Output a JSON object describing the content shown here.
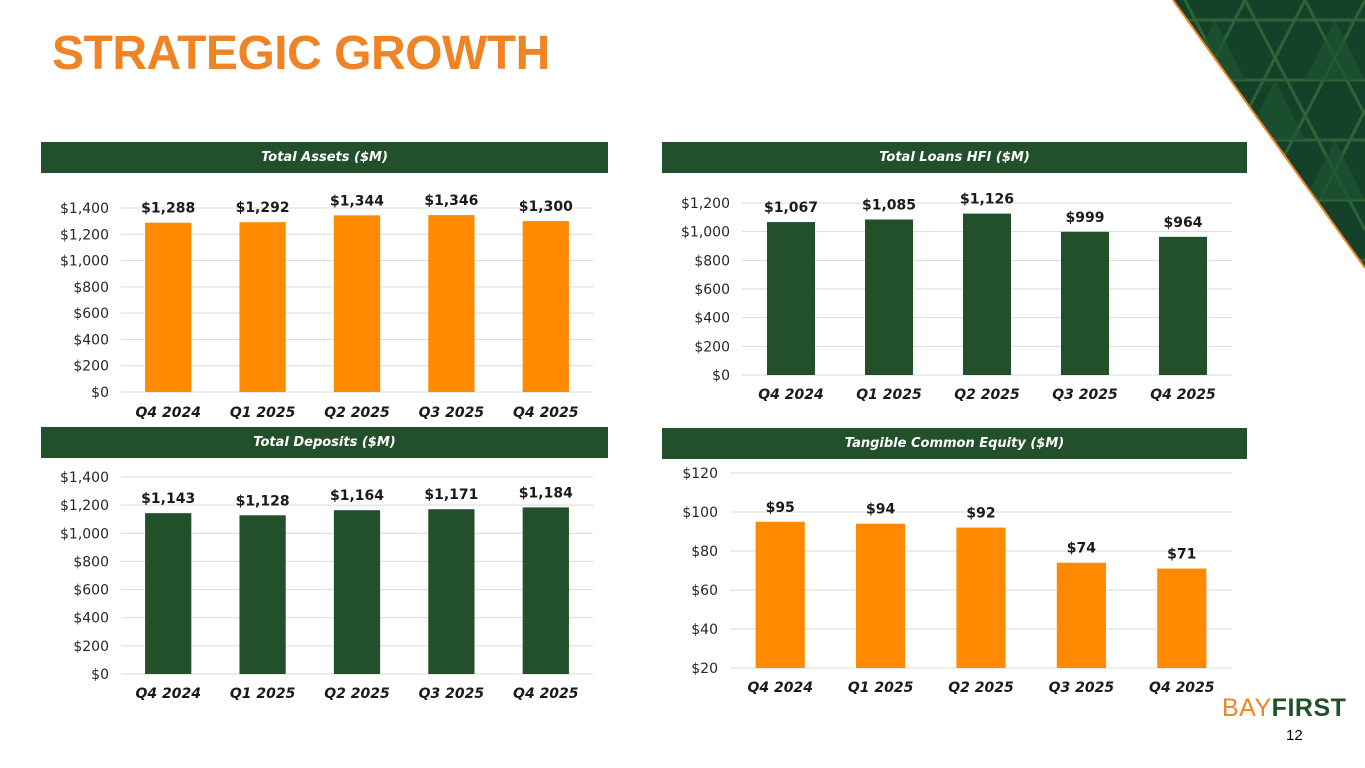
{
  "slide": {
    "title": "STRATEGIC GROWTH",
    "page_number": "12"
  },
  "brand": {
    "logo_part1": "BAY",
    "logo_part2": "FIRST",
    "orange": "#F08425",
    "green": "#22502A"
  },
  "chart_data": [
    {
      "type": "bar",
      "title": "Total Assets  ($M)",
      "categories": [
        "Q4 2024",
        "Q1 2025",
        "Q2 2025",
        "Q3 2025",
        "Q4 2025"
      ],
      "values": [
        1288,
        1292,
        1344,
        1346,
        1300
      ],
      "labels": [
        "$1,288",
        "$1,292",
        "$1,344",
        "$1,346",
        "$1,300"
      ],
      "ylim": [
        0,
        1400
      ],
      "ytick_step": 200,
      "yticks": [
        "$0",
        "$200",
        "$400",
        "$600",
        "$800",
        "$1,000",
        "$1,200",
        "$1,400"
      ],
      "color": "#FF8A00"
    },
    {
      "type": "bar",
      "title": "Total Loans HFI ($M)",
      "categories": [
        "Q4 2024",
        "Q1 2025",
        "Q2 2025",
        "Q3 2025",
        "Q4 2025"
      ],
      "values": [
        1067,
        1085,
        1126,
        999,
        964
      ],
      "labels": [
        "$1,067",
        "$1,085",
        "$1,126",
        "$999",
        "$964"
      ],
      "ylim": [
        0,
        1200
      ],
      "ytick_step": 200,
      "yticks": [
        "$0",
        "$200",
        "$400",
        "$600",
        "$800",
        "$1,000",
        "$1,200"
      ],
      "color": "#22502A"
    },
    {
      "type": "bar",
      "title": "Total Deposits ($M)",
      "categories": [
        "Q4 2024",
        "Q1 2025",
        "Q2 2025",
        "Q3 2025",
        "Q4 2025"
      ],
      "values": [
        1143,
        1128,
        1164,
        1171,
        1184
      ],
      "labels": [
        "$1,143",
        "$1,128",
        "$1,164",
        "$1,171",
        "$1,184"
      ],
      "ylim": [
        0,
        1400
      ],
      "ytick_step": 200,
      "yticks": [
        "$0",
        "$200",
        "$400",
        "$600",
        "$800",
        "$1,000",
        "$1,200",
        "$1,400"
      ],
      "color": "#22502A"
    },
    {
      "type": "bar",
      "title": "Tangible Common Equity ($M)",
      "categories": [
        "Q4 2024",
        "Q1 2025",
        "Q2 2025",
        "Q3 2025",
        "Q4 2025"
      ],
      "values": [
        95,
        94,
        92,
        74,
        71
      ],
      "labels": [
        "$95",
        "$94",
        "$92",
        "$74",
        "$71"
      ],
      "ylim": [
        20,
        120
      ],
      "ytick_step": 20,
      "yticks": [
        "$20",
        "$40",
        "$60",
        "$80",
        "$100",
        "$120"
      ],
      "color": "#FF8A00"
    }
  ]
}
